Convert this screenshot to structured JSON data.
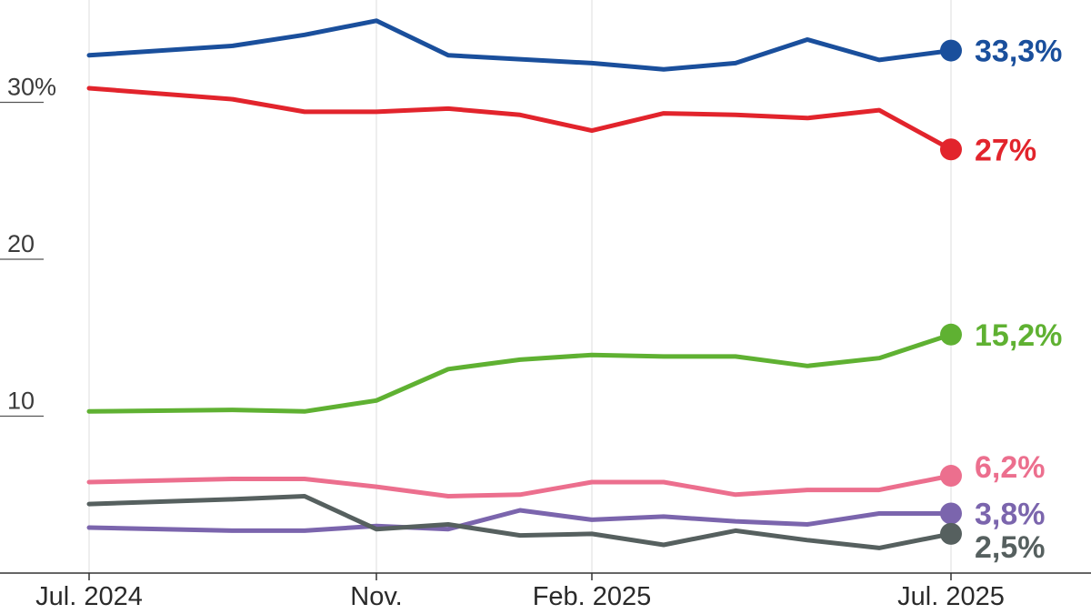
{
  "chart_data": {
    "type": "line",
    "title": "",
    "xlabel": "",
    "ylabel": "",
    "x": [
      "2024-07",
      "2024-08",
      "2024-09",
      "2024-10",
      "2024-11",
      "2024-12",
      "2025-01",
      "2025-02",
      "2025-03",
      "2025-04",
      "2025-05",
      "2025-06",
      "2025-07"
    ],
    "x_ticks": [
      {
        "x": "2024-07",
        "label": "Jul. 2024"
      },
      {
        "x": "2024-11",
        "label": "Nov."
      },
      {
        "x": "2025-02",
        "label": "Feb. 2025"
      },
      {
        "x": "2025-07",
        "label": "Jul. 2025"
      }
    ],
    "y_ticks": [
      {
        "value": 30,
        "label": "30%"
      },
      {
        "value": 20,
        "label": "20"
      },
      {
        "value": 10,
        "label": "10"
      }
    ],
    "ylim": [
      0,
      35.5
    ],
    "grid": {
      "vertical": true,
      "horizontal": false
    },
    "series": [
      {
        "color": "#1a4f9c",
        "end_label": "33,3%",
        "points": [
          [
            "2024-07",
            33.0
          ],
          [
            "2024-09",
            33.6
          ],
          [
            "2024-10",
            34.3
          ],
          [
            "2024-11",
            35.2
          ],
          [
            "2024-12",
            33.0
          ],
          [
            "2025-02",
            32.5
          ],
          [
            "2025-03",
            32.1
          ],
          [
            "2025-04",
            32.5
          ],
          [
            "2025-05",
            34.0
          ],
          [
            "2025-06",
            32.7
          ],
          [
            "2025-07",
            33.3
          ]
        ]
      },
      {
        "color": "#e2242c",
        "end_label": "27%",
        "points": [
          [
            "2024-07",
            30.9
          ],
          [
            "2024-09",
            30.2
          ],
          [
            "2024-10",
            29.4
          ],
          [
            "2024-11",
            29.4
          ],
          [
            "2024-12",
            29.6
          ],
          [
            "2025-01",
            29.2
          ],
          [
            "2025-02",
            28.2
          ],
          [
            "2025-03",
            29.3
          ],
          [
            "2025-04",
            29.2
          ],
          [
            "2025-05",
            29.0
          ],
          [
            "2025-06",
            29.5
          ],
          [
            "2025-07",
            27.0
          ]
        ]
      },
      {
        "color": "#5fb132",
        "end_label": "15,2%",
        "points": [
          [
            "2024-07",
            10.3
          ],
          [
            "2024-09",
            10.4
          ],
          [
            "2024-10",
            10.3
          ],
          [
            "2024-11",
            11.0
          ],
          [
            "2024-12",
            13.0
          ],
          [
            "2025-01",
            13.6
          ],
          [
            "2025-02",
            13.9
          ],
          [
            "2025-03",
            13.8
          ],
          [
            "2025-04",
            13.8
          ],
          [
            "2025-05",
            13.2
          ],
          [
            "2025-06",
            13.7
          ],
          [
            "2025-07",
            15.2
          ]
        ]
      },
      {
        "color": "#ec6f8e",
        "end_label": "6,2%",
        "points": [
          [
            "2024-07",
            5.8
          ],
          [
            "2024-09",
            6.0
          ],
          [
            "2024-10",
            6.0
          ],
          [
            "2024-11",
            5.5
          ],
          [
            "2024-12",
            4.9
          ],
          [
            "2025-01",
            5.0
          ],
          [
            "2025-02",
            5.8
          ],
          [
            "2025-03",
            5.8
          ],
          [
            "2025-04",
            5.0
          ],
          [
            "2025-05",
            5.3
          ],
          [
            "2025-06",
            5.3
          ],
          [
            "2025-07",
            6.2
          ]
        ]
      },
      {
        "color": "#7b65ad",
        "end_label": "3,8%",
        "points": [
          [
            "2024-07",
            2.9
          ],
          [
            "2024-09",
            2.7
          ],
          [
            "2024-10",
            2.7
          ],
          [
            "2024-11",
            3.0
          ],
          [
            "2024-12",
            2.8
          ],
          [
            "2025-01",
            4.0
          ],
          [
            "2025-02",
            3.4
          ],
          [
            "2025-03",
            3.6
          ],
          [
            "2025-04",
            3.3
          ],
          [
            "2025-05",
            3.1
          ],
          [
            "2025-06",
            3.8
          ],
          [
            "2025-07",
            3.8
          ]
        ]
      },
      {
        "color": "#56605f",
        "end_label": "2,5%",
        "points": [
          [
            "2024-07",
            4.4
          ],
          [
            "2024-09",
            4.7
          ],
          [
            "2024-10",
            4.9
          ],
          [
            "2024-11",
            2.8
          ],
          [
            "2024-12",
            3.1
          ],
          [
            "2025-01",
            2.4
          ],
          [
            "2025-02",
            2.5
          ],
          [
            "2025-03",
            1.8
          ],
          [
            "2025-04",
            2.7
          ],
          [
            "2025-05",
            2.1
          ],
          [
            "2025-06",
            1.6
          ],
          [
            "2025-07",
            2.5
          ]
        ]
      }
    ]
  }
}
